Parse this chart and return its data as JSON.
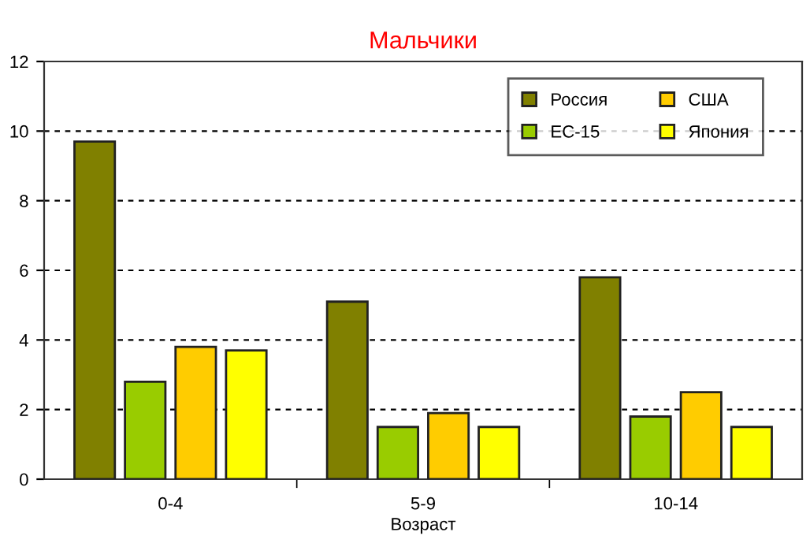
{
  "chart_data": {
    "type": "bar",
    "title": "Мальчики",
    "xlabel": "Возраст",
    "categories": [
      "0-4",
      "5-9",
      "10-14"
    ],
    "series": [
      {
        "name": "Россия",
        "color": "#808000",
        "values": [
          9.7,
          5.1,
          5.8
        ]
      },
      {
        "name": "ЕС-15",
        "color": "#99cc00",
        "values": [
          2.8,
          1.5,
          1.8
        ]
      },
      {
        "name": "США",
        "color": "#ffcc00",
        "values": [
          3.8,
          1.9,
          2.5
        ]
      },
      {
        "name": "Япония",
        "color": "#ffff00",
        "values": [
          3.7,
          1.5,
          1.5
        ]
      }
    ],
    "ylim": [
      0,
      12
    ],
    "yticks": [
      0,
      2,
      4,
      6,
      8,
      10,
      12
    ],
    "grid": "y",
    "legend": "top right"
  }
}
